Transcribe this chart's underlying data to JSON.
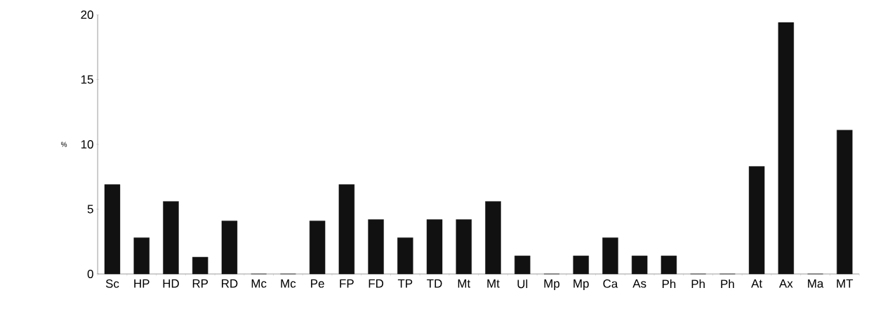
{
  "chart_data": {
    "type": "bar",
    "ylabel": "%",
    "categories": [
      "Sc",
      "HP",
      "HD",
      "RP",
      "RD",
      "Mc",
      "Mc",
      "Pe",
      "FP",
      "FD",
      "TP",
      "TD",
      "Mt",
      "Mt",
      "Ul",
      "Mp",
      "Mp",
      "Ca",
      "As",
      "Ph",
      "Ph",
      "Ph",
      "At",
      "Ax",
      "Ma",
      "MT"
    ],
    "values": [
      6.9,
      2.8,
      5.6,
      1.3,
      4.1,
      0,
      0,
      4.1,
      6.9,
      4.2,
      2.8,
      4.2,
      4.2,
      5.6,
      1.4,
      0,
      1.4,
      2.8,
      1.4,
      1.4,
      0,
      0,
      8.3,
      19.4,
      0,
      11.1
    ],
    "color": "#111111",
    "ylim": [
      0,
      20
    ],
    "yticks": [
      0,
      5,
      10,
      15,
      20
    ],
    "grid": false
  }
}
